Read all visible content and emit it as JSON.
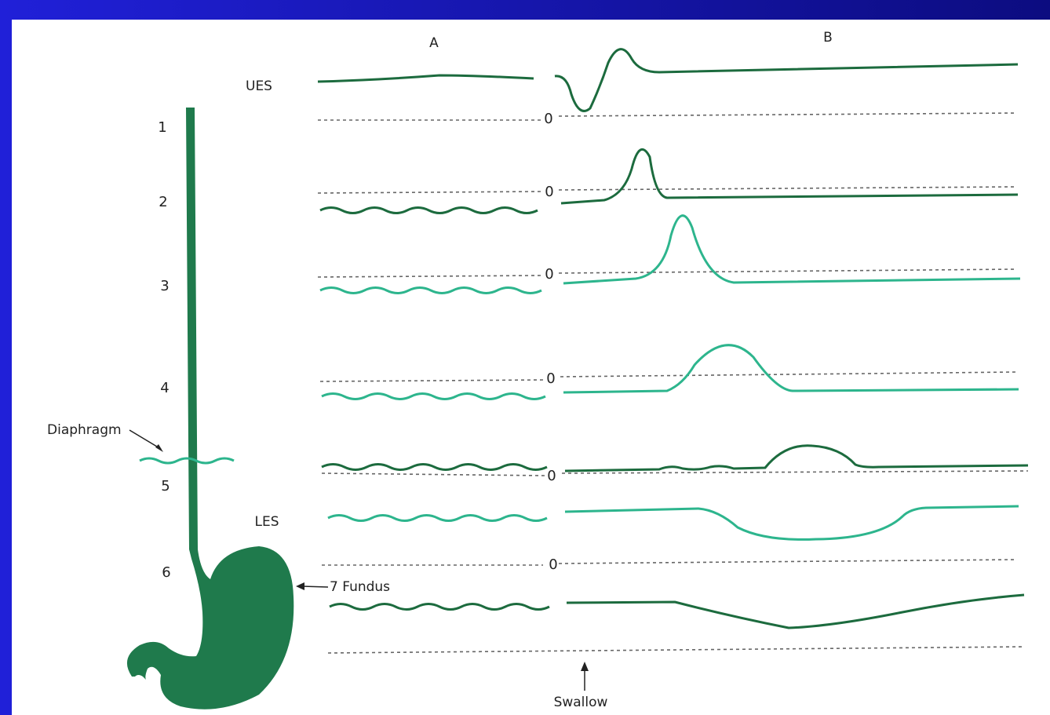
{
  "column_labels": [
    "A",
    "B"
  ],
  "sphincters": {
    "upper": "UES",
    "lower": "LES"
  },
  "level_labels": [
    "1",
    "2",
    "3",
    "4",
    "5",
    "6"
  ],
  "zero_labels": [
    "0",
    "0",
    "0",
    "0",
    "0",
    "0"
  ],
  "diaphragm": "Diaphragm",
  "fundus": "7 Fundus",
  "swallow": "Swallow"
}
